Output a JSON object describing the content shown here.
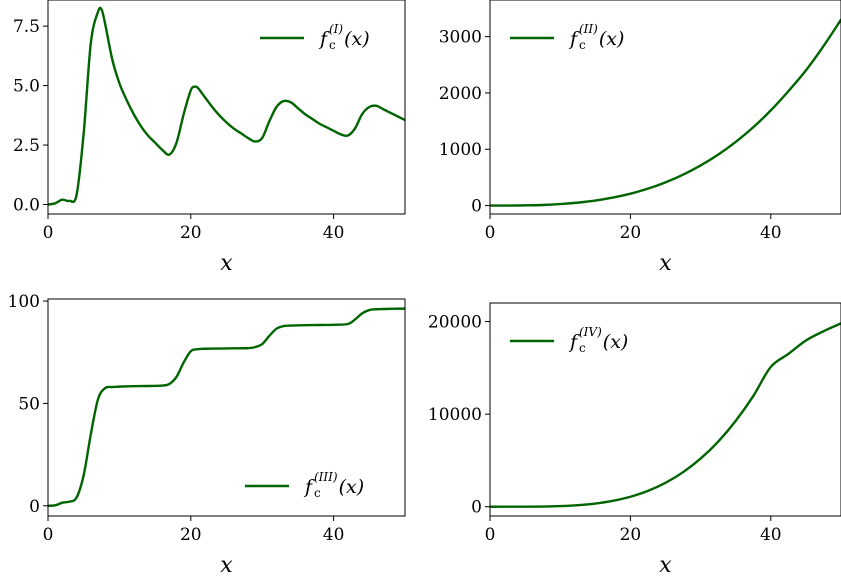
{
  "chart_data": [
    {
      "type": "line",
      "xlabel": "x",
      "xlim": [
        0,
        50
      ],
      "ylim": [
        -0.4,
        8.6
      ],
      "xticks": [
        "0",
        "20",
        "40"
      ],
      "yticks": [
        "0.0",
        "2.5",
        "5.0",
        "7.5"
      ],
      "legend": {
        "placement": "top-right",
        "func": "f",
        "sub": "c",
        "sup": "(I)",
        "arg": "(x)"
      },
      "series": [
        {
          "x": [
            0,
            1,
            2,
            3,
            4,
            5,
            6,
            7,
            7.5,
            8,
            9,
            10,
            11,
            12,
            13,
            14,
            15,
            16,
            17,
            18,
            19,
            20,
            20.5,
            21,
            22,
            23,
            24,
            25,
            26,
            27,
            28,
            29,
            30,
            31,
            32,
            33,
            34,
            35,
            36,
            37,
            38,
            39,
            40,
            41,
            42,
            43,
            44,
            45,
            46,
            47,
            48,
            49,
            50
          ],
          "y": [
            0.0,
            0.05,
            0.2,
            0.15,
            0.4,
            3.0,
            6.8,
            8.1,
            8.2,
            7.6,
            6.1,
            5.1,
            4.4,
            3.8,
            3.3,
            2.9,
            2.6,
            2.3,
            2.1,
            2.6,
            3.8,
            4.8,
            4.95,
            4.9,
            4.5,
            4.1,
            3.75,
            3.45,
            3.2,
            3.0,
            2.8,
            2.65,
            2.8,
            3.5,
            4.1,
            4.35,
            4.3,
            4.05,
            3.8,
            3.6,
            3.4,
            3.25,
            3.1,
            2.95,
            2.9,
            3.2,
            3.8,
            4.1,
            4.15,
            4.0,
            3.85,
            3.7,
            3.55
          ]
        }
      ]
    },
    {
      "type": "line",
      "xlabel": "x",
      "xlim": [
        0,
        50
      ],
      "ylim": [
        -150,
        3650
      ],
      "xticks": [
        "0",
        "20",
        "40"
      ],
      "yticks": [
        "0",
        "1000",
        "2000",
        "3000"
      ],
      "legend": {
        "placement": "top-left",
        "func": "f",
        "sub": "c",
        "sup": "(II)",
        "arg": "(x)"
      },
      "series": [
        {
          "x": [
            0,
            2.5,
            5,
            7.5,
            10,
            12.5,
            15,
            17.5,
            20,
            22.5,
            25,
            27.5,
            30,
            32.5,
            35,
            37.5,
            40,
            42.5,
            45,
            47.5,
            50
          ],
          "y": [
            0,
            0.4,
            3,
            10,
            26,
            52,
            89,
            141,
            211,
            300,
            412,
            548,
            712,
            905,
            1130,
            1390,
            1690,
            2030,
            2400,
            2830,
            3300
          ]
        }
      ]
    },
    {
      "type": "line",
      "xlabel": "x",
      "xlim": [
        0,
        50
      ],
      "ylim": [
        -5,
        101
      ],
      "xticks": [
        "0",
        "20",
        "40"
      ],
      "yticks": [
        "0",
        "50",
        "100"
      ],
      "legend": {
        "placement": "lower-right",
        "func": "f",
        "sub": "c",
        "sup": "(III)",
        "arg": "(x)"
      },
      "series": [
        {
          "x": [
            0,
            1,
            2,
            3,
            4,
            5,
            6,
            7,
            8,
            9,
            10,
            12,
            14,
            16,
            17,
            18,
            19,
            20,
            21,
            22,
            24,
            26,
            28,
            29,
            30,
            31,
            32,
            33,
            34,
            36,
            38,
            40,
            42,
            43,
            44,
            45,
            46,
            48,
            50
          ],
          "y": [
            0,
            0.2,
            1.5,
            2.0,
            4.0,
            15,
            35,
            52,
            57.5,
            58,
            58.2,
            58.4,
            58.5,
            58.7,
            59.5,
            63,
            70,
            75.5,
            76.5,
            76.7,
            76.8,
            76.9,
            77.0,
            77.5,
            79,
            83,
            86.5,
            87.8,
            88,
            88.2,
            88.3,
            88.4,
            88.8,
            91,
            94,
            95.6,
            96.0,
            96.2,
            96.3
          ]
        }
      ]
    },
    {
      "type": "line",
      "xlabel": "x",
      "xlim": [
        0,
        50
      ],
      "ylim": [
        -1000,
        22000
      ],
      "xticks": [
        "0",
        "20",
        "40"
      ],
      "yticks": [
        "0",
        "10000",
        "20000"
      ],
      "legend": {
        "placement": "top-left",
        "func": "f",
        "sub": "c",
        "sup": "(IV)",
        "arg": "(x)"
      },
      "series": [
        {
          "x": [
            0,
            2.5,
            5,
            7.5,
            10,
            12.5,
            15,
            17.5,
            20,
            22.5,
            25,
            27.5,
            30,
            32.5,
            35,
            37.5,
            40,
            42.5,
            45,
            47.5,
            50
          ],
          "y": [
            0,
            0.5,
            5,
            22,
            68,
            165,
            345,
            640,
            1080,
            1710,
            2580,
            3730,
            5200,
            7030,
            9270,
            11950,
            15100,
            16500,
            17950,
            18950,
            19800
          ]
        }
      ]
    }
  ],
  "colors": {
    "line": "#006400",
    "axis": "#000000",
    "background": "#ffffff"
  }
}
